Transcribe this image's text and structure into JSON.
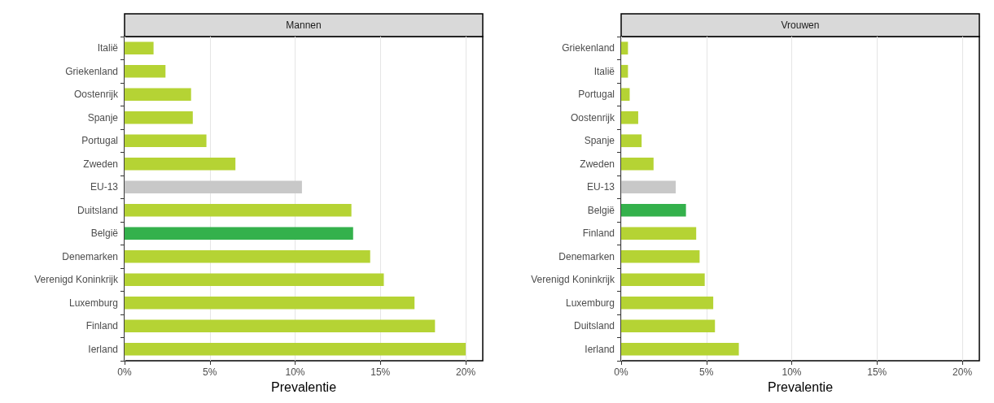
{
  "chart_data": [
    {
      "type": "bar",
      "orientation": "horizontal",
      "title": "Mannen",
      "xlabel": "Prevalentie",
      "categories": [
        "Italië",
        "Griekenland",
        "Oostenrijk",
        "Spanje",
        "Portugal",
        "Zweden",
        "EU-13",
        "Duitsland",
        "België",
        "Denemarken",
        "Verenigd Koninkrijk",
        "Luxemburg",
        "Finland",
        "Ierland"
      ],
      "values": [
        1.7,
        2.4,
        3.9,
        4.0,
        4.8,
        6.5,
        10.4,
        13.3,
        13.4,
        14.4,
        15.2,
        17.0,
        18.2,
        20.0
      ],
      "colors": [
        "#b5d334",
        "#b5d334",
        "#b5d334",
        "#b5d334",
        "#b5d334",
        "#b5d334",
        "#c8c8c8",
        "#b5d334",
        "#34b14c",
        "#b5d334",
        "#b5d334",
        "#b5d334",
        "#b5d334",
        "#b5d334"
      ],
      "xlim": [
        0,
        21
      ],
      "xticks": [
        {
          "value": 0,
          "label": "0%"
        },
        {
          "value": 5,
          "label": "5%"
        },
        {
          "value": 10,
          "label": "10%"
        },
        {
          "value": 15,
          "label": "15%"
        },
        {
          "value": 20,
          "label": "20%"
        }
      ],
      "grid": "x"
    },
    {
      "type": "bar",
      "orientation": "horizontal",
      "title": "Vrouwen",
      "xlabel": "Prevalentie",
      "categories": [
        "Griekenland",
        "Italië",
        "Portugal",
        "Oostenrijk",
        "Spanje",
        "Zweden",
        "EU-13",
        "België",
        "Finland",
        "Denemarken",
        "Verenigd Koninkrijk",
        "Luxemburg",
        "Duitsland",
        "Ierland"
      ],
      "values": [
        0.4,
        0.4,
        0.5,
        1.0,
        1.2,
        1.9,
        3.2,
        3.8,
        4.4,
        4.6,
        4.9,
        5.4,
        5.5,
        6.9
      ],
      "colors": [
        "#b5d334",
        "#b5d334",
        "#b5d334",
        "#b5d334",
        "#b5d334",
        "#b5d334",
        "#c8c8c8",
        "#34b14c",
        "#b5d334",
        "#b5d334",
        "#b5d334",
        "#b5d334",
        "#b5d334",
        "#b5d334"
      ],
      "xlim": [
        0,
        21
      ],
      "xticks": [
        {
          "value": 0,
          "label": "0%"
        },
        {
          "value": 5,
          "label": "5%"
        },
        {
          "value": 10,
          "label": "10%"
        },
        {
          "value": 15,
          "label": "15%"
        },
        {
          "value": 20,
          "label": "20%"
        }
      ],
      "grid": "x"
    }
  ]
}
